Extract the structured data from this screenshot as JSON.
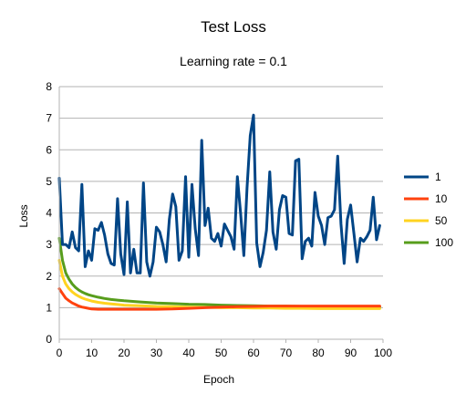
{
  "chart_data": {
    "type": "line",
    "title": "Test Loss",
    "subtitle": "Learning rate = 0.1",
    "xlabel": "Epoch",
    "ylabel": "Loss",
    "xlim": [
      0,
      100
    ],
    "ylim": [
      0,
      8
    ],
    "x_ticks": [
      0,
      10,
      20,
      30,
      40,
      50,
      60,
      70,
      80,
      90,
      100
    ],
    "y_ticks": [
      0,
      1,
      2,
      3,
      4,
      5,
      6,
      7,
      8
    ],
    "grid": "horizontal",
    "legend_position": "right",
    "series": [
      {
        "name": "1",
        "color": "#004586",
        "x": [
          0,
          1,
          2,
          3,
          4,
          5,
          6,
          7,
          8,
          9,
          10,
          11,
          12,
          13,
          14,
          15,
          16,
          17,
          18,
          19,
          20,
          21,
          22,
          23,
          24,
          25,
          26,
          27,
          28,
          29,
          30,
          31,
          32,
          33,
          34,
          35,
          36,
          37,
          38,
          39,
          40,
          41,
          42,
          43,
          44,
          45,
          46,
          47,
          48,
          49,
          50,
          51,
          52,
          53,
          54,
          55,
          56,
          57,
          58,
          59,
          60,
          61,
          62,
          63,
          64,
          65,
          66,
          67,
          68,
          69,
          70,
          71,
          72,
          73,
          74,
          75,
          76,
          77,
          78,
          79,
          80,
          81,
          82,
          83,
          84,
          85,
          86,
          87,
          88,
          89,
          90,
          91,
          92,
          93,
          94,
          95,
          96,
          97,
          98,
          99
        ],
        "values": [
          5.1,
          3.0,
          3.0,
          2.9,
          3.4,
          2.9,
          2.8,
          4.9,
          2.3,
          2.8,
          2.5,
          3.5,
          3.45,
          3.7,
          3.3,
          2.7,
          2.4,
          2.35,
          4.45,
          2.7,
          2.05,
          4.35,
          2.1,
          2.85,
          2.1,
          2.1,
          4.95,
          2.45,
          2.0,
          2.45,
          3.55,
          3.4,
          3.0,
          2.45,
          3.8,
          4.6,
          4.2,
          2.5,
          2.8,
          5.15,
          2.6,
          4.9,
          3.5,
          2.65,
          6.3,
          3.6,
          4.15,
          3.2,
          3.1,
          3.35,
          2.95,
          3.65,
          3.45,
          3.25,
          2.85,
          5.15,
          4.0,
          2.65,
          4.8,
          6.45,
          7.1,
          3.05,
          2.3,
          2.75,
          3.45,
          5.3,
          3.4,
          2.85,
          4.1,
          4.55,
          4.5,
          3.35,
          3.3,
          5.65,
          5.7,
          2.55,
          3.1,
          3.2,
          2.95,
          4.65,
          3.9,
          3.6,
          3.0,
          3.85,
          3.9,
          4.1,
          5.8,
          3.65,
          2.4,
          3.8,
          4.25,
          3.35,
          2.45,
          3.2,
          3.1,
          3.25,
          3.45,
          4.5,
          3.15,
          3.6
        ]
      },
      {
        "name": "10",
        "color": "#ff420e",
        "x": [
          0,
          1,
          2,
          3,
          4,
          5,
          6,
          7,
          8,
          9,
          10,
          12,
          14,
          16,
          18,
          20,
          25,
          30,
          35,
          40,
          45,
          50,
          55,
          60,
          65,
          70,
          75,
          80,
          85,
          90,
          95,
          99
        ],
        "values": [
          1.6,
          1.45,
          1.3,
          1.22,
          1.15,
          1.1,
          1.05,
          1.02,
          1.0,
          0.98,
          0.96,
          0.95,
          0.95,
          0.95,
          0.95,
          0.95,
          0.95,
          0.95,
          0.96,
          0.98,
          1.0,
          1.02,
          1.03,
          1.04,
          1.05,
          1.05,
          1.05,
          1.05,
          1.05,
          1.05,
          1.05,
          1.05
        ]
      },
      {
        "name": "50",
        "color": "#ffd320",
        "x": [
          0,
          1,
          2,
          3,
          4,
          5,
          6,
          7,
          8,
          9,
          10,
          12,
          14,
          16,
          18,
          20,
          25,
          30,
          35,
          40,
          45,
          50,
          55,
          60,
          65,
          70,
          75,
          80,
          85,
          90,
          95,
          99
        ],
        "values": [
          2.5,
          2.0,
          1.75,
          1.6,
          1.5,
          1.42,
          1.36,
          1.31,
          1.27,
          1.24,
          1.21,
          1.17,
          1.14,
          1.12,
          1.1,
          1.08,
          1.06,
          1.04,
          1.03,
          1.02,
          1.01,
          1.0,
          1.0,
          0.99,
          0.99,
          0.98,
          0.98,
          0.97,
          0.97,
          0.97,
          0.97,
          0.97
        ]
      },
      {
        "name": "100",
        "color": "#579d1c",
        "x": [
          0,
          1,
          2,
          3,
          4,
          5,
          6,
          7,
          8,
          9,
          10,
          12,
          14,
          16,
          18,
          20,
          25,
          30,
          35,
          40,
          45,
          50,
          55,
          60,
          65,
          70,
          75,
          80,
          85,
          90,
          95,
          99
        ],
        "values": [
          3.2,
          2.5,
          2.1,
          1.9,
          1.75,
          1.64,
          1.56,
          1.5,
          1.45,
          1.41,
          1.38,
          1.33,
          1.29,
          1.26,
          1.24,
          1.22,
          1.18,
          1.15,
          1.13,
          1.11,
          1.1,
          1.08,
          1.07,
          1.06,
          1.05,
          1.05,
          1.04,
          1.04,
          1.03,
          1.03,
          1.03,
          1.03
        ]
      }
    ]
  }
}
